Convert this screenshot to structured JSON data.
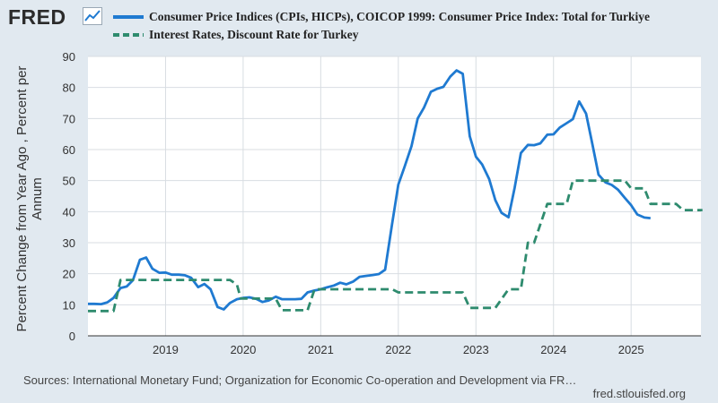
{
  "logo": {
    "text": "FRED",
    "icon": "line-chart-icon"
  },
  "chart_data": {
    "type": "line",
    "title": "",
    "ylabel": "Percent Change from Year Ago , Percent per Annum",
    "xlabel": "",
    "ylim": [
      0,
      90
    ],
    "xlim": [
      2018.0,
      2025.9
    ],
    "yticks": [
      0,
      10,
      20,
      30,
      40,
      50,
      60,
      70,
      80,
      90
    ],
    "xticks": [
      {
        "label": "2019",
        "value": 2019.0
      },
      {
        "label": "2020",
        "value": 2020.0
      },
      {
        "label": "2021",
        "value": 2021.0
      },
      {
        "label": "2022",
        "value": 2022.0
      },
      {
        "label": "2023",
        "value": 2023.0
      },
      {
        "label": "2024",
        "value": 2024.0
      },
      {
        "label": "2025",
        "value": 2025.0
      }
    ],
    "grid": true,
    "series": [
      {
        "name": "Consumer Price Indices (CPIs, HICPs), COICOP 1999: Consumer Price Index: Total for Turkiye",
        "color": "#1f7ad1",
        "style": "solid",
        "points": [
          [
            2018.0,
            10.3
          ],
          [
            2018.08,
            10.3
          ],
          [
            2018.17,
            10.2
          ],
          [
            2018.25,
            10.8
          ],
          [
            2018.33,
            12.2
          ],
          [
            2018.42,
            15.4
          ],
          [
            2018.5,
            15.9
          ],
          [
            2018.58,
            17.9
          ],
          [
            2018.67,
            24.5
          ],
          [
            2018.75,
            25.2
          ],
          [
            2018.83,
            21.6
          ],
          [
            2018.92,
            20.3
          ],
          [
            2019.0,
            20.4
          ],
          [
            2019.08,
            19.7
          ],
          [
            2019.17,
            19.7
          ],
          [
            2019.25,
            19.5
          ],
          [
            2019.33,
            18.7
          ],
          [
            2019.42,
            15.7
          ],
          [
            2019.5,
            16.7
          ],
          [
            2019.58,
            15.0
          ],
          [
            2019.67,
            9.3
          ],
          [
            2019.75,
            8.5
          ],
          [
            2019.83,
            10.6
          ],
          [
            2019.92,
            11.8
          ],
          [
            2020.0,
            12.2
          ],
          [
            2020.08,
            12.4
          ],
          [
            2020.17,
            11.9
          ],
          [
            2020.25,
            10.9
          ],
          [
            2020.33,
            11.4
          ],
          [
            2020.42,
            12.6
          ],
          [
            2020.5,
            11.8
          ],
          [
            2020.58,
            11.8
          ],
          [
            2020.67,
            11.8
          ],
          [
            2020.75,
            11.9
          ],
          [
            2020.83,
            14.0
          ],
          [
            2020.92,
            14.6
          ],
          [
            2021.0,
            15.0
          ],
          [
            2021.08,
            15.6
          ],
          [
            2021.17,
            16.2
          ],
          [
            2021.25,
            17.1
          ],
          [
            2021.33,
            16.6
          ],
          [
            2021.42,
            17.5
          ],
          [
            2021.5,
            19.0
          ],
          [
            2021.58,
            19.3
          ],
          [
            2021.67,
            19.6
          ],
          [
            2021.75,
            19.9
          ],
          [
            2021.83,
            21.3
          ],
          [
            2021.92,
            36.1
          ],
          [
            2022.0,
            48.7
          ],
          [
            2022.08,
            54.4
          ],
          [
            2022.17,
            61.1
          ],
          [
            2022.25,
            70.0
          ],
          [
            2022.33,
            73.5
          ],
          [
            2022.42,
            78.6
          ],
          [
            2022.5,
            79.6
          ],
          [
            2022.58,
            80.2
          ],
          [
            2022.67,
            83.5
          ],
          [
            2022.75,
            85.5
          ],
          [
            2022.83,
            84.4
          ],
          [
            2022.92,
            64.3
          ],
          [
            2023.0,
            57.7
          ],
          [
            2023.08,
            55.2
          ],
          [
            2023.17,
            50.5
          ],
          [
            2023.25,
            43.7
          ],
          [
            2023.33,
            39.6
          ],
          [
            2023.42,
            38.2
          ],
          [
            2023.5,
            47.8
          ],
          [
            2023.58,
            58.9
          ],
          [
            2023.67,
            61.5
          ],
          [
            2023.75,
            61.4
          ],
          [
            2023.83,
            62.0
          ],
          [
            2023.92,
            64.8
          ],
          [
            2024.0,
            64.9
          ],
          [
            2024.08,
            67.1
          ],
          [
            2024.17,
            68.5
          ],
          [
            2024.25,
            69.8
          ],
          [
            2024.33,
            75.5
          ],
          [
            2024.42,
            71.6
          ],
          [
            2024.5,
            61.8
          ],
          [
            2024.58,
            51.9
          ],
          [
            2024.67,
            49.4
          ],
          [
            2024.75,
            48.6
          ],
          [
            2024.83,
            47.1
          ],
          [
            2024.92,
            44.4
          ],
          [
            2025.0,
            42.1
          ],
          [
            2025.08,
            39.1
          ],
          [
            2025.17,
            38.1
          ],
          [
            2025.25,
            37.9
          ]
        ]
      },
      {
        "name": "Interest Rates, Discount Rate for Turkey",
        "color": "#2e8b6e",
        "style": "dashed",
        "points": [
          [
            2018.0,
            8.0
          ],
          [
            2018.33,
            8.0
          ],
          [
            2018.42,
            18.0
          ],
          [
            2019.0,
            18.0
          ],
          [
            2019.5,
            18.0
          ],
          [
            2019.83,
            18.0
          ],
          [
            2019.92,
            16.5
          ],
          [
            2019.97,
            12.0
          ],
          [
            2020.42,
            12.0
          ],
          [
            2020.5,
            8.25
          ],
          [
            2020.83,
            8.25
          ],
          [
            2020.92,
            15.0
          ],
          [
            2021.0,
            15.0
          ],
          [
            2021.25,
            15.0
          ],
          [
            2021.33,
            15.0
          ],
          [
            2021.92,
            15.0
          ],
          [
            2022.0,
            14.0
          ],
          [
            2022.5,
            14.0
          ],
          [
            2022.83,
            14.0
          ],
          [
            2022.92,
            9.0
          ],
          [
            2023.17,
            9.0
          ],
          [
            2023.25,
            9.0
          ],
          [
            2023.42,
            15.0
          ],
          [
            2023.58,
            15.0
          ],
          [
            2023.67,
            30.0
          ],
          [
            2023.75,
            30.0
          ],
          [
            2023.92,
            42.5
          ],
          [
            2024.08,
            42.5
          ],
          [
            2024.17,
            42.5
          ],
          [
            2024.25,
            50.0
          ],
          [
            2024.92,
            50.0
          ],
          [
            2025.0,
            47.5
          ],
          [
            2025.17,
            47.5
          ],
          [
            2025.25,
            42.5
          ],
          [
            2025.58,
            42.5
          ],
          [
            2025.67,
            40.5
          ],
          [
            2025.92,
            40.5
          ]
        ]
      }
    ]
  },
  "footer": {
    "sources": "Sources: International Monetary Fund; Organization for Economic Co-operation and Development via FR…",
    "site": "fred.stlouisfed.org"
  }
}
